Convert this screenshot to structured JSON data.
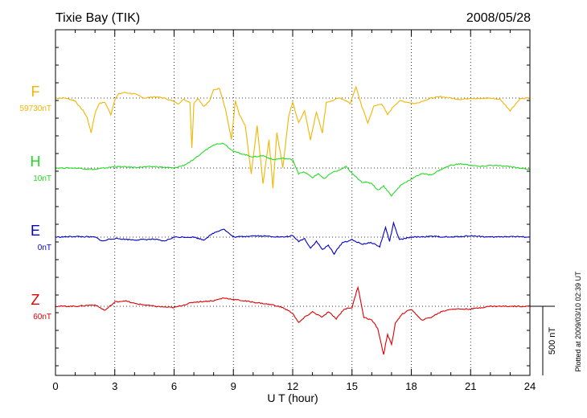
{
  "station_title": "Tixie Bay (TIK)",
  "date": "2008/05/28",
  "plotted_note": "Plotted at 2009/03/10 02:39 UT",
  "chart_data": {
    "type": "line",
    "title": "Tixie Bay (TIK)",
    "xlabel": "U T (hour)",
    "ylabel": "",
    "xlim": [
      0,
      24
    ],
    "x_ticks": [
      "0",
      "3",
      "6",
      "9",
      "12",
      "15",
      "18",
      "21",
      "24"
    ],
    "grid": true,
    "scale_bar": {
      "label": "500 nT",
      "value_nT": 500
    },
    "series": [
      {
        "name": "F",
        "baseline_label": "59730nT",
        "baseline_nT": 59730,
        "color": "#f5b400",
        "x": [
          0,
          0.5,
          1.0,
          1.2,
          1.4,
          1.6,
          1.8,
          2.0,
          2.2,
          2.5,
          2.8,
          3.0,
          3.2,
          3.5,
          4.0,
          4.5,
          5.0,
          5.5,
          5.9,
          6.2,
          6.5,
          6.8,
          6.9,
          7.0,
          7.2,
          7.5,
          7.8,
          8.0,
          8.3,
          8.6,
          8.9,
          9.1,
          9.3,
          9.6,
          9.9,
          10.2,
          10.5,
          10.8,
          11.0,
          11.2,
          11.5,
          11.8,
          12.0,
          12.3,
          12.6,
          12.9,
          13.2,
          13.5,
          13.7,
          14.0,
          14.3,
          14.6,
          14.9,
          15.2,
          15.5,
          15.8,
          16.1,
          16.5,
          16.8,
          17.1,
          17.4,
          17.8,
          18.2,
          18.6,
          19.0,
          19.5,
          20.0,
          20.5,
          21.0,
          21.5,
          22.0,
          22.5,
          23.0,
          23.5,
          24.0
        ],
        "y": [
          0,
          0,
          -20,
          -60,
          -90,
          -140,
          -250,
          -110,
          -40,
          -30,
          -120,
          -10,
          30,
          40,
          30,
          0,
          10,
          0,
          -20,
          -40,
          -10,
          -30,
          -360,
          -40,
          0,
          -60,
          -20,
          60,
          70,
          -80,
          -300,
          -20,
          -120,
          -200,
          -550,
          -200,
          -620,
          -300,
          -650,
          -250,
          -500,
          -130,
          -30,
          -180,
          -90,
          -300,
          -100,
          -250,
          -30,
          -20,
          0,
          -10,
          -40,
          80,
          -60,
          -180,
          -60,
          -40,
          -120,
          -60,
          -20,
          -30,
          -40,
          -20,
          0,
          10,
          0,
          -10,
          0,
          -5,
          0,
          -10,
          -90,
          -5,
          0
        ]
      },
      {
        "name": "H",
        "baseline_label": "10nT",
        "baseline_nT": 10,
        "color": "#22dd22",
        "x": [
          0,
          1.0,
          2.0,
          2.5,
          3.0,
          4.0,
          5.0,
          5.5,
          6.0,
          6.5,
          7.0,
          7.5,
          8.0,
          8.5,
          9.0,
          9.5,
          10.0,
          10.5,
          11.0,
          11.5,
          12.0,
          12.3,
          12.6,
          13.0,
          13.3,
          13.6,
          14.0,
          14.3,
          14.7,
          15.0,
          15.5,
          16.0,
          16.3,
          16.6,
          17.0,
          17.5,
          18.0,
          18.5,
          19.0,
          19.5,
          20.0,
          20.5,
          21.0,
          21.5,
          22.0,
          22.5,
          23.0,
          23.5,
          24.0
        ],
        "y": [
          0,
          0,
          -10,
          0,
          10,
          5,
          10,
          5,
          0,
          20,
          60,
          120,
          170,
          180,
          120,
          100,
          80,
          90,
          60,
          70,
          60,
          -40,
          -30,
          -70,
          -40,
          -80,
          -30,
          -20,
          10,
          -40,
          -100,
          -110,
          -160,
          -130,
          -200,
          -120,
          -80,
          -40,
          -50,
          -10,
          20,
          30,
          20,
          10,
          20,
          15,
          10,
          0,
          -10
        ]
      },
      {
        "name": "E",
        "baseline_label": "0nT",
        "baseline_nT": 0,
        "color": "#0000cc",
        "x": [
          0,
          1.0,
          2.0,
          2.4,
          2.7,
          3.0,
          4.0,
          5.0,
          5.5,
          6.0,
          7.0,
          7.5,
          8.0,
          8.5,
          9.0,
          10.0,
          11.0,
          11.5,
          12.0,
          12.3,
          12.6,
          12.9,
          13.2,
          13.5,
          13.8,
          14.1,
          14.5,
          15.0,
          15.5,
          16.0,
          16.4,
          16.7,
          16.9,
          17.1,
          17.4,
          18.0,
          19.0,
          20.0,
          21.0,
          22.0,
          23.0,
          24.0
        ],
        "y": [
          0,
          5,
          0,
          -30,
          -15,
          -10,
          -20,
          -15,
          -30,
          0,
          0,
          -20,
          30,
          60,
          0,
          10,
          5,
          0,
          10,
          -30,
          -10,
          -80,
          -30,
          -90,
          -60,
          -120,
          -40,
          -20,
          -50,
          -40,
          -70,
          70,
          -30,
          100,
          -20,
          0,
          5,
          0,
          10,
          0,
          5,
          0
        ]
      },
      {
        "name": "Z",
        "baseline_label": "60nT",
        "baseline_nT": 60,
        "color": "#dd0000",
        "x": [
          0,
          1.0,
          2.0,
          2.5,
          3.0,
          3.5,
          4.0,
          5.0,
          6.0,
          6.5,
          7.0,
          8.0,
          8.5,
          9.0,
          10.0,
          11.0,
          11.5,
          12.0,
          12.3,
          12.6,
          13.0,
          13.5,
          13.8,
          14.2,
          14.6,
          15.0,
          15.3,
          15.6,
          16.0,
          16.3,
          16.6,
          16.8,
          17.0,
          17.2,
          17.5,
          18.0,
          18.5,
          19.0,
          19.5,
          20.0,
          21.0,
          22.0,
          23.0,
          24.0
        ],
        "y": [
          0,
          0,
          10,
          -30,
          30,
          40,
          20,
          0,
          -10,
          10,
          30,
          40,
          60,
          50,
          30,
          10,
          -10,
          -50,
          -120,
          -80,
          -40,
          -80,
          -40,
          -90,
          -20,
          -10,
          140,
          -80,
          -100,
          -160,
          -350,
          -200,
          -280,
          -120,
          -60,
          -20,
          -100,
          -80,
          -40,
          -20,
          -20,
          0,
          0,
          0
        ]
      }
    ]
  }
}
